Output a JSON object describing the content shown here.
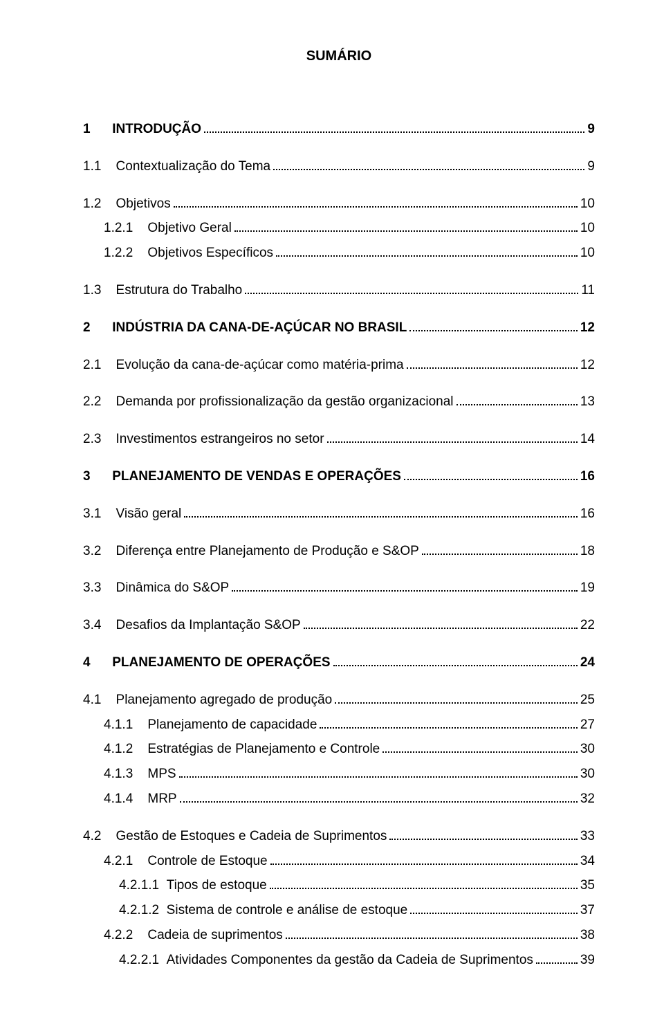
{
  "title": "SUMÁRIO",
  "typography": {
    "font_family": "Arial",
    "title_fontsize_pt": 15,
    "entry_fontsize_pt": 14,
    "text_color": "#000000",
    "background_color": "#ffffff",
    "leader_style": "dotted"
  },
  "entries": [
    {
      "num": "1",
      "text": "INTRODUÇÃO",
      "page": "9",
      "level": 0,
      "bold": true,
      "gap_before": false
    },
    {
      "num": "1.1",
      "text": "Contextualização do Tema",
      "page": "9",
      "level": 1,
      "bold": false,
      "gap_before": true
    },
    {
      "num": "1.2",
      "text": "Objetivos",
      "page": "10",
      "level": 1,
      "bold": false,
      "gap_before": true
    },
    {
      "num": "1.2.1",
      "text": "Objetivo Geral",
      "page": "10",
      "level": 2,
      "bold": false,
      "gap_before": false
    },
    {
      "num": "1.2.2",
      "text": "Objetivos Específicos",
      "page": "10",
      "level": 2,
      "bold": false,
      "gap_before": false
    },
    {
      "num": "1.3",
      "text": "Estrutura do Trabalho",
      "page": "11",
      "level": 1,
      "bold": false,
      "gap_before": true
    },
    {
      "num": "2",
      "text": "INDÚSTRIA DA CANA-DE-AÇÚCAR NO BRASIL",
      "page": "12",
      "level": 0,
      "bold": true,
      "gap_before": true
    },
    {
      "num": "2.1",
      "text": "Evolução da cana-de-açúcar como matéria-prima",
      "page": "12",
      "level": 1,
      "bold": false,
      "gap_before": true
    },
    {
      "num": "2.2",
      "text": "Demanda por profissionalização da gestão organizacional",
      "page": "13",
      "level": 1,
      "bold": false,
      "gap_before": true
    },
    {
      "num": "2.3",
      "text": "Investimentos estrangeiros no setor",
      "page": "14",
      "level": 1,
      "bold": false,
      "gap_before": true
    },
    {
      "num": "3",
      "text": "PLANEJAMENTO DE VENDAS E OPERAÇÕES",
      "page": "16",
      "level": 0,
      "bold": true,
      "gap_before": true
    },
    {
      "num": "3.1",
      "text": "Visão geral",
      "page": "16",
      "level": 1,
      "bold": false,
      "gap_before": true
    },
    {
      "num": "3.2",
      "text": "Diferença entre Planejamento de Produção e S&OP",
      "page": "18",
      "level": 1,
      "bold": false,
      "gap_before": true
    },
    {
      "num": "3.3",
      "text": "Dinâmica do S&OP",
      "page": "19",
      "level": 1,
      "bold": false,
      "gap_before": true
    },
    {
      "num": "3.4",
      "text": "Desafios da Implantação S&OP",
      "page": "22",
      "level": 1,
      "bold": false,
      "gap_before": true
    },
    {
      "num": "4",
      "text": "PLANEJAMENTO DE OPERAÇÕES",
      "page": "24",
      "level": 0,
      "bold": true,
      "gap_before": true
    },
    {
      "num": "4.1",
      "text": "Planejamento agregado de produção",
      "page": "25",
      "level": 1,
      "bold": false,
      "gap_before": true
    },
    {
      "num": "4.1.1",
      "text": "Planejamento de capacidade",
      "page": "27",
      "level": 2,
      "bold": false,
      "gap_before": false
    },
    {
      "num": "4.1.2",
      "text": "Estratégias de Planejamento e Controle",
      "page": "30",
      "level": 2,
      "bold": false,
      "gap_before": false
    },
    {
      "num": "4.1.3",
      "text": "MPS",
      "page": "30",
      "level": 2,
      "bold": false,
      "gap_before": false
    },
    {
      "num": "4.1.4",
      "text": "MRP",
      "page": "32",
      "level": 2,
      "bold": false,
      "gap_before": false
    },
    {
      "num": "4.2",
      "text": "Gestão de Estoques e Cadeia de Suprimentos",
      "page": "33",
      "level": 1,
      "bold": false,
      "gap_before": true
    },
    {
      "num": "4.2.1",
      "text": "Controle de Estoque",
      "page": "34",
      "level": 2,
      "bold": false,
      "gap_before": false
    },
    {
      "num": "4.2.1.1",
      "text": "Tipos de estoque",
      "page": "35",
      "level": 3,
      "bold": false,
      "gap_before": false
    },
    {
      "num": "4.2.1.2",
      "text": "Sistema de controle e análise de estoque",
      "page": "37",
      "level": 3,
      "bold": false,
      "gap_before": false
    },
    {
      "num": "4.2.2",
      "text": "Cadeia de suprimentos",
      "page": "38",
      "level": 2,
      "bold": false,
      "gap_before": false
    },
    {
      "num": "4.2.2.1",
      "text": "Atividades Componentes da gestão da Cadeia de Suprimentos",
      "page": "39",
      "level": 3,
      "bold": false,
      "gap_before": false
    }
  ],
  "num_pad": {
    "lvl0": "      ",
    "lvl1_short": "    ",
    "lvl1_long": "    ",
    "lvl2": "    ",
    "lvl3": "  "
  }
}
